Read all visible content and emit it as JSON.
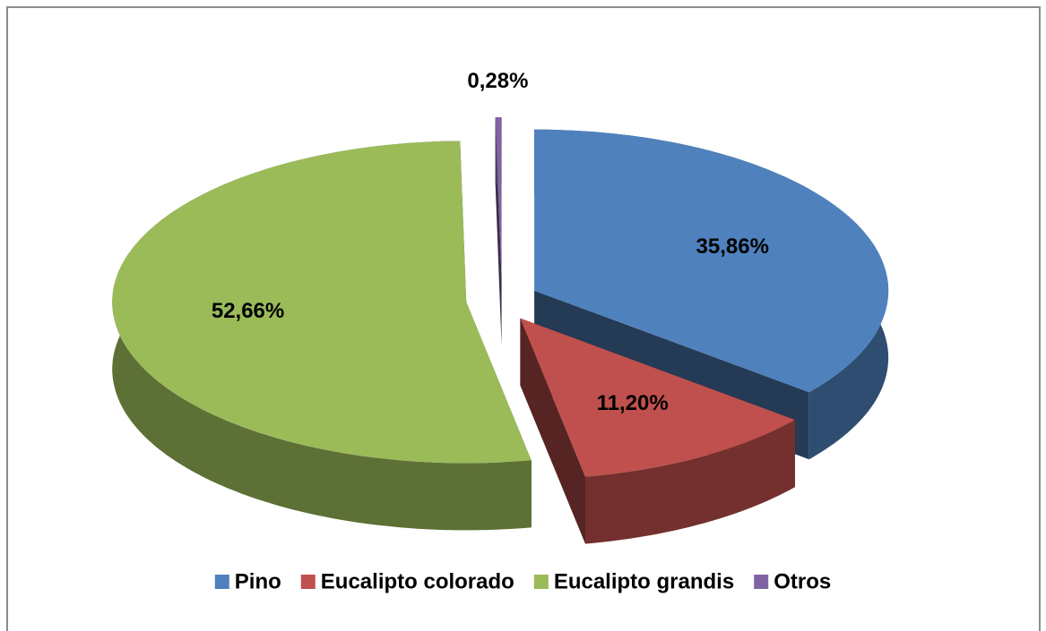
{
  "chart_data": {
    "type": "pie",
    "categories": [
      "Pino",
      "Eucalipto colorado",
      "Eucalipto grandis",
      "Otros"
    ],
    "values": [
      35.86,
      11.2,
      52.66,
      0.28
    ],
    "value_labels": [
      "35,86%",
      "11,20%",
      "52,66%",
      "0,28%"
    ],
    "colors": [
      "#4f81bd",
      "#c0504d",
      "#9bbb59",
      "#8064a2"
    ],
    "exploded": true,
    "three_d": true,
    "legend": "bottom"
  }
}
